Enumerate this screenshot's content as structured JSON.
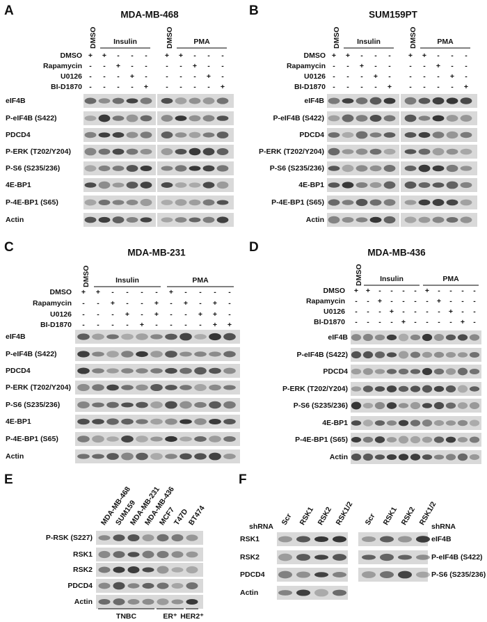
{
  "panels": [
    {
      "letter": "A",
      "title": "MDA-MB-468",
      "headers": [
        "DMSO",
        "Insulin",
        "DMSO",
        "PMA"
      ],
      "treatments": [
        {
          "label": "DMSO",
          "signs": [
            "+",
            "+",
            "-",
            "-",
            "-",
            "+",
            "+",
            "-",
            "-",
            "-"
          ]
        },
        {
          "label": "Rapamycin",
          "signs": [
            "-",
            "-",
            "+",
            "-",
            "-",
            "-",
            "-",
            "+",
            "-",
            "-"
          ]
        },
        {
          "label": "U0126",
          "signs": [
            "-",
            "-",
            "-",
            "+",
            "-",
            "-",
            "-",
            "-",
            "+",
            "-"
          ]
        },
        {
          "label": "BI-D1870",
          "signs": [
            "-",
            "-",
            "-",
            "-",
            "+",
            "-",
            "-",
            "-",
            "-",
            "+"
          ]
        }
      ],
      "blots": [
        "eIF4B",
        "P-eIF4B (S422)",
        "PDCD4",
        "P-ERK (T202/Y204)",
        "P-S6 (S235/236)",
        "4E-BP1",
        "P-4E-BP1 (S65)",
        "Actin"
      ]
    },
    {
      "letter": "B",
      "title": "SUM159PT",
      "headers": [
        "DMSO",
        "Insulin",
        "DMSO",
        "PMA"
      ],
      "treatments": [
        {
          "label": "DMSO",
          "signs": [
            "+",
            "+",
            "-",
            "-",
            "-",
            "+",
            "+",
            "-",
            "-",
            "-"
          ]
        },
        {
          "label": "Rapamycin",
          "signs": [
            "-",
            "-",
            "+",
            "-",
            "-",
            "-",
            "-",
            "+",
            "-",
            "-"
          ]
        },
        {
          "label": "U0126",
          "signs": [
            "-",
            "-",
            "-",
            "+",
            "-",
            "-",
            "-",
            "-",
            "+",
            "-"
          ]
        },
        {
          "label": "BI-D1870",
          "signs": [
            "-",
            "-",
            "-",
            "-",
            "+",
            "-",
            "-",
            "-",
            "-",
            "+"
          ]
        }
      ],
      "blots": [
        "eIF4B",
        "P-eIF4B (S422)",
        "PDCD4",
        "P-ERK (T202/Y204)",
        "P-S6 (S235/236)",
        "4E-BP1",
        "P-4E-BP1 (S65)",
        "Actin"
      ]
    },
    {
      "letter": "C",
      "title": "MDA-MB-231",
      "headers": [
        "DMSO",
        "Insulin",
        "PMA"
      ],
      "treatments": [
        {
          "label": "DMSO",
          "signs": [
            "+",
            "+",
            "-",
            "-",
            "-",
            "-",
            "+",
            "-",
            "-",
            "-",
            "-"
          ]
        },
        {
          "label": "Rapamycin",
          "signs": [
            "-",
            "-",
            "+",
            "-",
            "-",
            "+",
            "-",
            "+",
            "-",
            "+",
            "-"
          ]
        },
        {
          "label": "U0126",
          "signs": [
            "-",
            "-",
            "-",
            "+",
            "-",
            "+",
            "-",
            "-",
            "+",
            "+",
            "-"
          ]
        },
        {
          "label": "BI-D1870",
          "signs": [
            "-",
            "-",
            "-",
            "-",
            "+",
            "-",
            "-",
            "-",
            "-",
            "+",
            "+"
          ]
        }
      ],
      "blots": [
        "eIF4B",
        "P-eIF4B (S422)",
        "PDCD4",
        "P-ERK (T202/Y204)",
        "P-S6 (S235/236)",
        "4E-BP1",
        "P-4E-BP1 (S65)",
        "Actin"
      ]
    },
    {
      "letter": "D",
      "title": "MDA-MB-436",
      "headers": [
        "DMSO",
        "Insulin",
        "PMA"
      ],
      "treatments": [
        {
          "label": "DMSO",
          "signs": [
            "+",
            "+",
            "-",
            "-",
            "-",
            "-",
            "+",
            "-",
            "-",
            "-",
            "-"
          ]
        },
        {
          "label": "Rapamycin",
          "signs": [
            "-",
            "-",
            "+",
            "-",
            "-",
            "-",
            "-",
            "+",
            "-",
            "-",
            "-"
          ]
        },
        {
          "label": "U0126",
          "signs": [
            "-",
            "-",
            "-",
            "+",
            "-",
            "-",
            "-",
            "-",
            "+",
            "-",
            "-"
          ]
        },
        {
          "label": "BI-D1870",
          "signs": [
            "-",
            "-",
            "-",
            "-",
            "+",
            "-",
            "-",
            "-",
            "-",
            "+",
            "-"
          ]
        }
      ],
      "blots": [
        "eIF4B",
        "P-eIF4B (S422)",
        "PDCD4",
        "P-ERK (T202/Y204)",
        "P-S6 (S235/236)",
        "4E-BP1",
        "P-4E-BP1 (S65)",
        "Actin"
      ]
    }
  ],
  "panel_e": {
    "letter": "E",
    "columns": [
      "MDA-MB-468",
      "SUM159",
      "MDA-MB-231",
      "MDA-MB-436",
      "MCF7",
      "T47D",
      "BT474"
    ],
    "blots": [
      "P-RSK (S227)",
      "RSK1",
      "RSK2",
      "PDCD4",
      "Actin"
    ],
    "groups": [
      "TNBC",
      "ER⁺",
      "HER2⁺"
    ]
  },
  "panel_f": {
    "letter": "F",
    "left": {
      "label": "shRNA",
      "columns": [
        "Scr",
        "RSK1",
        "RSK2",
        "RSK1/2"
      ],
      "blots": [
        "RSK1",
        "RSK2",
        "PDCD4",
        "Actin"
      ]
    },
    "right": {
      "label": "shRNA",
      "columns": [
        "Scr",
        "RSK1",
        "RSK2",
        "RSK1/2"
      ],
      "blots": [
        "eIF4B",
        "P-eIF4B (S422)",
        "P-S6 (S235/236)"
      ]
    }
  }
}
